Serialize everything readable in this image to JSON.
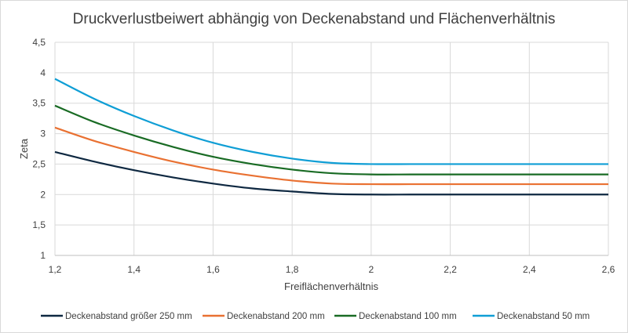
{
  "chart_data": {
    "type": "line",
    "title": "Druckverlustbeiwert abhängig von Deckenabstand und Flächenverhältnis",
    "xlabel": "Freiflächenverhältnis",
    "ylabel": "Zeta",
    "xlim": [
      1.2,
      2.6
    ],
    "ylim": [
      1,
      4.5
    ],
    "xticks": [
      "1,2",
      "1,4",
      "1,6",
      "1,8",
      "2",
      "2,2",
      "2,4",
      "2,6"
    ],
    "xtick_values": [
      1.2,
      1.4,
      1.6,
      1.8,
      2.0,
      2.2,
      2.4,
      2.6
    ],
    "yticks": [
      "1",
      "1,5",
      "2",
      "2,5",
      "3",
      "3,5",
      "4",
      "4,5"
    ],
    "ytick_values": [
      1,
      1.5,
      2,
      2.5,
      3,
      3.5,
      4,
      4.5
    ],
    "grid": true,
    "legend_position": "bottom",
    "x": [
      1.2,
      1.3,
      1.4,
      1.5,
      1.6,
      1.7,
      1.8,
      1.9,
      2.0,
      2.1,
      2.2,
      2.3,
      2.4,
      2.5,
      2.6
    ],
    "series": [
      {
        "name": "Deckenabstand größer 250 mm",
        "color": "#0e2841",
        "values": [
          2.7,
          2.54,
          2.4,
          2.28,
          2.18,
          2.1,
          2.05,
          2.01,
          2.0,
          2.0,
          2.0,
          2.0,
          2.0,
          2.0,
          2.0
        ]
      },
      {
        "name": "Deckenabstand 200 mm",
        "color": "#e97132",
        "values": [
          3.1,
          2.88,
          2.7,
          2.54,
          2.41,
          2.31,
          2.23,
          2.18,
          2.17,
          2.17,
          2.17,
          2.17,
          2.17,
          2.17,
          2.17
        ]
      },
      {
        "name": "Deckenabstand 100 mm",
        "color": "#196b24",
        "values": [
          3.46,
          3.19,
          2.97,
          2.78,
          2.62,
          2.5,
          2.41,
          2.35,
          2.33,
          2.33,
          2.33,
          2.33,
          2.33,
          2.33,
          2.33
        ]
      },
      {
        "name": "Deckenabstand 50 mm",
        "color": "#0f9ed5",
        "values": [
          3.9,
          3.57,
          3.29,
          3.05,
          2.85,
          2.7,
          2.59,
          2.52,
          2.5,
          2.5,
          2.5,
          2.5,
          2.5,
          2.5,
          2.5
        ]
      }
    ]
  }
}
